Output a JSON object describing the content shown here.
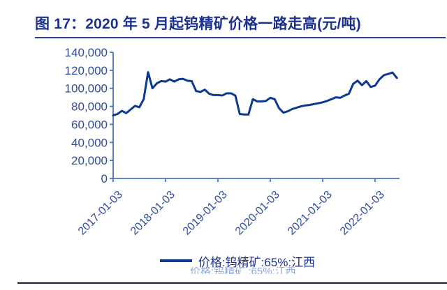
{
  "figure": {
    "title": "图 17：2020 年 5 月起钨精矿价格一路走高(元/吨)"
  },
  "legend": {
    "label": "价格:钨精矿:65%:江西"
  },
  "footer": {
    "ghost_text": "价格:钨精矿 :65%:江西"
  },
  "colors": {
    "title_text": "#1a3191",
    "axis_line": "#4a73c0",
    "tick_label": "#2f4da0",
    "data_line": "#0b3890",
    "bottom_rule": "#1b2441"
  },
  "chart_data": {
    "type": "line",
    "title": "图 17：2020 年 5 月起钨精矿价格一路走高(元/吨)",
    "unit": "元/吨",
    "ylim": [
      0,
      140000
    ],
    "y_ticks": [
      0,
      20000,
      40000,
      60000,
      80000,
      100000,
      120000,
      140000
    ],
    "y_tick_labels": [
      "0",
      "20,000",
      "40,000",
      "60,000",
      "80,000",
      "100,000",
      "120,000",
      "140,000"
    ],
    "x_tick_labels": [
      "2017-01-03",
      "2018-01-03",
      "2019-01-03",
      "2020-01-03",
      "2021-01-03",
      "2022-01-03"
    ],
    "grid": false,
    "legend_position": "bottom",
    "series": [
      {
        "name": "价格:钨精矿:65%:江西",
        "x": [
          "2017-01",
          "2017-02",
          "2017-03",
          "2017-04",
          "2017-05",
          "2017-06",
          "2017-07",
          "2017-08",
          "2017-09",
          "2017-10",
          "2017-11",
          "2017-12",
          "2018-01",
          "2018-02",
          "2018-03",
          "2018-04",
          "2018-05",
          "2018-06",
          "2018-07",
          "2018-08",
          "2018-09",
          "2018-10",
          "2018-11",
          "2018-12",
          "2019-01",
          "2019-02",
          "2019-03",
          "2019-04",
          "2019-05",
          "2019-06",
          "2019-07",
          "2019-08",
          "2019-09",
          "2019-10",
          "2019-11",
          "2019-12",
          "2020-01",
          "2020-02",
          "2020-03",
          "2020-04",
          "2020-05",
          "2020-06",
          "2020-07",
          "2020-08",
          "2020-09",
          "2020-10",
          "2020-11",
          "2020-12",
          "2021-01",
          "2021-02",
          "2021-03",
          "2021-04",
          "2021-05",
          "2021-06",
          "2021-07",
          "2021-08",
          "2021-09",
          "2021-10",
          "2021-11",
          "2021-12",
          "2022-01",
          "2022-02",
          "2022-03",
          "2022-04",
          "2022-05",
          "2022-06"
        ],
        "values": [
          70000,
          71500,
          75000,
          72500,
          76500,
          80500,
          79000,
          88000,
          118000,
          100000,
          105500,
          108000,
          107500,
          110000,
          107500,
          110000,
          110500,
          108500,
          108000,
          97000,
          96000,
          98500,
          94000,
          92500,
          92500,
          92000,
          94500,
          94500,
          92000,
          71500,
          71000,
          71000,
          88000,
          85500,
          85500,
          86000,
          89500,
          88000,
          78000,
          73000,
          74500,
          77000,
          78500,
          80000,
          81000,
          81500,
          82500,
          83500,
          84500,
          86000,
          88000,
          90000,
          89500,
          92000,
          94000,
          105000,
          108500,
          103500,
          108000,
          101500,
          103000,
          110000,
          114500,
          116000,
          117500,
          111500
        ]
      }
    ]
  }
}
